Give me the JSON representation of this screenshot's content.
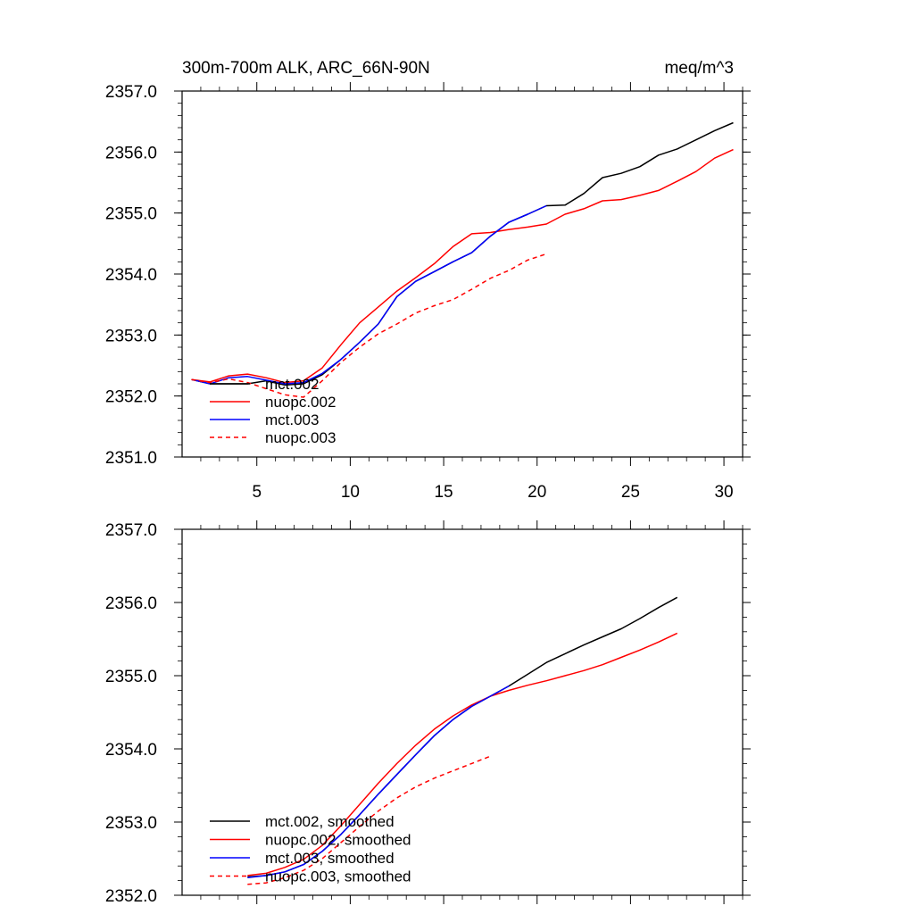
{
  "chart_data": [
    {
      "type": "line",
      "title": "300m-700m ALK, ARC_66N-90N",
      "units": "meq/m^3",
      "xlim": [
        1,
        31
      ],
      "ylim": [
        2351.0,
        2357.0
      ],
      "xticks": [
        5,
        10,
        15,
        20,
        25,
        30
      ],
      "yticks": [
        2351.0,
        2352.0,
        2353.0,
        2354.0,
        2355.0,
        2356.0,
        2357.0
      ],
      "ytick_labels": [
        "2351.0",
        "2352.0",
        "2353.0",
        "2354.0",
        "2355.0",
        "2356.0",
        "2357.0"
      ],
      "legend": "bottom-left",
      "series": [
        {
          "name": "mct.002",
          "color": "#000000",
          "dash": false,
          "x": [
            1.5,
            2.5,
            3.5,
            4.5,
            5.5,
            6.5,
            7.5,
            8.5,
            9.5,
            10.5,
            11.5,
            12.5,
            13.5,
            14.5,
            15.5,
            16.5,
            17.5,
            18.5,
            19.5,
            20.5,
            21.5,
            22.5,
            23.5,
            24.5,
            25.5,
            26.5,
            27.5,
            28.5,
            29.5,
            30.5
          ],
          "y": [
            2352.27,
            2352.2,
            2352.2,
            2352.2,
            2352.25,
            2352.18,
            2352.2,
            2352.35,
            2352.6,
            2352.88,
            2353.18,
            2353.63,
            2353.88,
            2354.04,
            2354.2,
            2354.35,
            2354.62,
            2354.85,
            2354.98,
            2355.12,
            2355.13,
            2355.32,
            2355.58,
            2355.65,
            2355.76,
            2355.95,
            2356.05,
            2356.2,
            2356.35,
            2356.48
          ]
        },
        {
          "name": "nuopc.002",
          "color": "#ff0000",
          "dash": false,
          "x": [
            1.5,
            2.5,
            3.5,
            4.5,
            5.5,
            6.5,
            7.5,
            8.5,
            9.5,
            10.5,
            11.5,
            12.5,
            13.5,
            14.5,
            15.5,
            16.5,
            17.5,
            18.5,
            19.5,
            20.5,
            21.5,
            22.5,
            23.5,
            24.5,
            25.5,
            26.5,
            27.5,
            28.5,
            29.5,
            30.5
          ],
          "y": [
            2352.27,
            2352.23,
            2352.33,
            2352.36,
            2352.3,
            2352.22,
            2352.25,
            2352.46,
            2352.84,
            2353.2,
            2353.46,
            2353.72,
            2353.94,
            2354.17,
            2354.45,
            2354.66,
            2354.68,
            2354.73,
            2354.77,
            2354.82,
            2354.98,
            2355.07,
            2355.2,
            2355.22,
            2355.29,
            2355.37,
            2355.52,
            2355.68,
            2355.9,
            2356.04
          ]
        },
        {
          "name": "mct.003",
          "color": "#0000ff",
          "dash": false,
          "x": [
            1.5,
            2.5,
            3.5,
            4.5,
            5.5,
            6.5,
            7.5,
            8.5,
            9.5,
            10.5,
            11.5,
            12.5,
            13.5,
            14.5,
            15.5,
            16.5,
            17.5,
            18.5,
            19.5,
            20.5
          ],
          "y": [
            2352.27,
            2352.2,
            2352.3,
            2352.32,
            2352.26,
            2352.2,
            2352.22,
            2352.37,
            2352.6,
            2352.88,
            2353.18,
            2353.63,
            2353.88,
            2354.04,
            2354.2,
            2354.35,
            2354.62,
            2354.85,
            2354.98,
            2355.12
          ]
        },
        {
          "name": "nuopc.003",
          "color": "#ff0000",
          "dash": true,
          "x": [
            1.5,
            2.5,
            3.5,
            4.5,
            5.5,
            6.5,
            7.5,
            8.5,
            9.5,
            10.5,
            11.5,
            12.5,
            13.5,
            14.5,
            15.5,
            16.5,
            17.5,
            18.5,
            19.5,
            20.5
          ],
          "y": [
            2352.27,
            2352.22,
            2352.28,
            2352.22,
            2352.12,
            2352.02,
            2351.98,
            2352.25,
            2352.55,
            2352.8,
            2353.02,
            2353.18,
            2353.36,
            2353.48,
            2353.58,
            2353.75,
            2353.93,
            2354.06,
            2354.23,
            2354.33
          ]
        }
      ]
    },
    {
      "type": "line",
      "xlim": [
        1,
        31
      ],
      "ylim": [
        2352.0,
        2357.0
      ],
      "xticks": [
        5,
        10,
        15,
        20,
        25,
        30
      ],
      "yticks": [
        2352.0,
        2353.0,
        2354.0,
        2355.0,
        2356.0,
        2357.0
      ],
      "ytick_labels": [
        "2352.0",
        "2353.0",
        "2354.0",
        "2355.0",
        "2356.0",
        "2357.0"
      ],
      "legend": "bottom-left",
      "series": [
        {
          "name": "mct.002, smoothed",
          "color": "#000000",
          "dash": false,
          "x": [
            4.5,
            5.5,
            6.5,
            7.5,
            8.5,
            9.5,
            10.5,
            11.5,
            12.5,
            13.5,
            14.5,
            15.5,
            16.5,
            17.5,
            18.5,
            19.5,
            20.5,
            21.5,
            22.5,
            23.5,
            24.5,
            25.5,
            26.5,
            27.5
          ],
          "y": [
            2352.25,
            2352.27,
            2352.32,
            2352.42,
            2352.6,
            2352.83,
            2353.1,
            2353.38,
            2353.65,
            2353.92,
            2354.18,
            2354.4,
            2354.58,
            2354.72,
            2354.86,
            2355.02,
            2355.18,
            2355.3,
            2355.42,
            2355.53,
            2355.64,
            2355.78,
            2355.93,
            2356.07
          ]
        },
        {
          "name": "nuopc.002, smoothed",
          "color": "#ff0000",
          "dash": false,
          "x": [
            4.5,
            5.5,
            6.5,
            7.5,
            8.5,
            9.5,
            10.5,
            11.5,
            12.5,
            13.5,
            14.5,
            15.5,
            16.5,
            17.5,
            18.5,
            19.5,
            20.5,
            21.5,
            22.5,
            23.5,
            24.5,
            25.5,
            26.5,
            27.5
          ],
          "y": [
            2352.27,
            2352.3,
            2352.38,
            2352.49,
            2352.68,
            2352.95,
            2353.24,
            2353.53,
            2353.8,
            2354.05,
            2354.27,
            2354.45,
            2354.6,
            2354.72,
            2354.8,
            2354.87,
            2354.93,
            2355.0,
            2355.07,
            2355.15,
            2355.25,
            2355.35,
            2355.46,
            2355.58
          ]
        },
        {
          "name": "mct.003, smoothed",
          "color": "#0000ff",
          "dash": false,
          "x": [
            4.5,
            5.5,
            6.5,
            7.5,
            8.5,
            9.5,
            10.5,
            11.5,
            12.5,
            13.5,
            14.5,
            15.5,
            16.5,
            17.5,
            18.5
          ],
          "y": [
            2352.24,
            2352.27,
            2352.32,
            2352.42,
            2352.6,
            2352.83,
            2353.1,
            2353.38,
            2353.65,
            2353.92,
            2354.18,
            2354.4,
            2354.58,
            2354.72,
            2354.86
          ]
        },
        {
          "name": "nuopc.003, smoothed",
          "color": "#ff0000",
          "dash": true,
          "x": [
            4.5,
            5.5,
            6.5,
            7.5,
            8.5,
            9.5,
            10.5,
            11.5,
            12.5,
            13.5,
            14.5,
            15.5,
            16.5,
            17.5
          ],
          "y": [
            2352.15,
            2352.17,
            2352.24,
            2352.34,
            2352.5,
            2352.72,
            2352.94,
            2353.15,
            2353.33,
            2353.48,
            2353.6,
            2353.7,
            2353.8,
            2353.9
          ]
        }
      ]
    }
  ]
}
